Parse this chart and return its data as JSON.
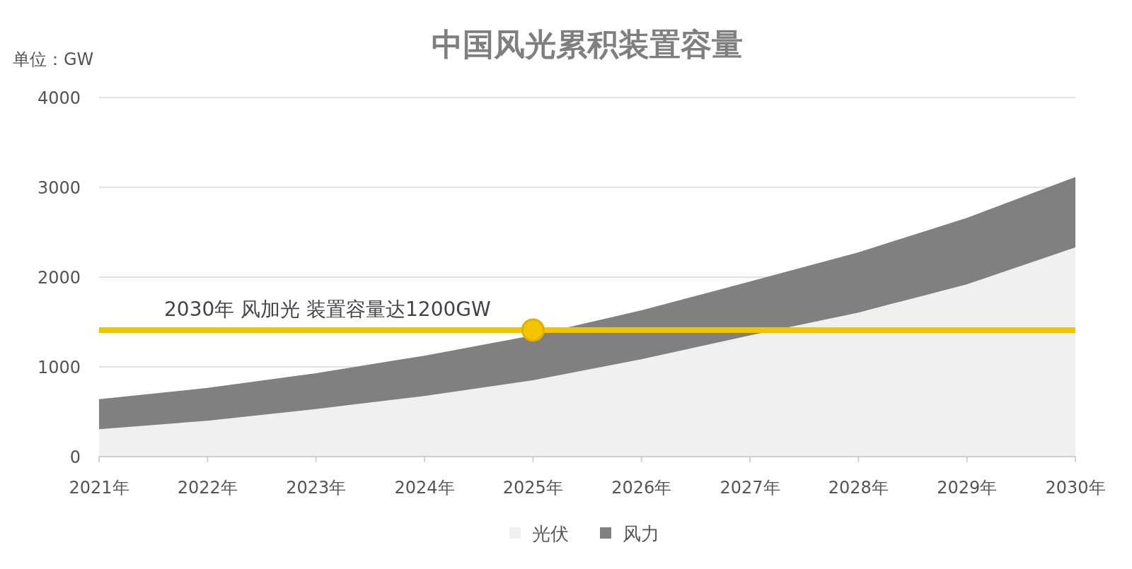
{
  "chart_data": {
    "type": "area",
    "title": "中国风光累积装置容量",
    "ylabel": "单位：GW",
    "categories": [
      "2021年",
      "2022年",
      "2023年",
      "2024年",
      "2025年",
      "2026年",
      "2027年",
      "2028年",
      "2029年",
      "2030年"
    ],
    "stacked": true,
    "series": [
      {
        "name": "光伏",
        "color": "#f0f0f0",
        "values": [
          305,
          400,
          530,
          675,
          850,
          1085,
          1350,
          1605,
          1920,
          2330
        ]
      },
      {
        "name": "风力",
        "color": "#808080",
        "values": [
          335,
          365,
          400,
          450,
          500,
          545,
          600,
          670,
          740,
          785
        ]
      },
      {
        "type": "scatter",
        "color": "#f5c400",
        "marker": "circle",
        "x": [
          "2025年"
        ],
        "values": [
          1410
        ]
      }
    ],
    "ylim": [
      0,
      4000
    ],
    "yticks": [
      0,
      1000,
      2000,
      3000,
      4000
    ],
    "grid": "y",
    "legend": "bottom",
    "ref_lines": [
      {
        "axis": "y",
        "value": 1410,
        "label": "2030年 风加光 装置容量达1200GW",
        "color": "#f5c400"
      }
    ]
  }
}
